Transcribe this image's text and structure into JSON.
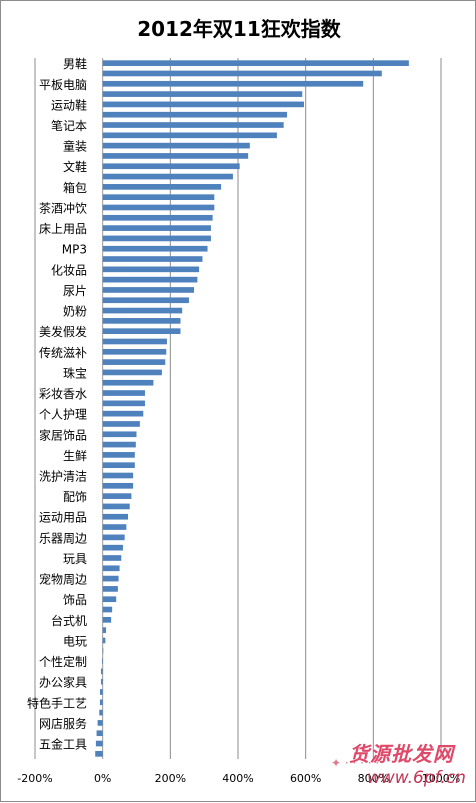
{
  "chart_data": {
    "type": "bar",
    "orientation": "horizontal",
    "title": "2012年双11狂欢指数",
    "xlabel": "",
    "ylabel": "",
    "xlim": [
      -200,
      1000
    ],
    "x_ticks": [
      "-200%",
      "0%",
      "200%",
      "400%",
      "600%",
      "800%",
      "1000%"
    ],
    "x_tick_values": [
      -200,
      0,
      200,
      400,
      600,
      800,
      1000
    ],
    "grid": "vertical",
    "bar_color": "#4f81bd",
    "categories": [
      "男鞋",
      "",
      "平板电脑",
      "",
      "运动鞋",
      "",
      "笔记本",
      "",
      "童装",
      "",
      "文鞋",
      "",
      "箱包",
      "",
      "茶酒冲饮",
      "",
      "床上用品",
      "",
      "MP3",
      "",
      "化妆品",
      "",
      "尿片",
      "",
      "奶粉",
      "",
      "美发假发",
      "",
      "传统滋补",
      "",
      "珠宝",
      "",
      "彩妆香水",
      "",
      "个人护理",
      "",
      "家居饰品",
      "",
      "生鲜",
      "",
      "洗护清洁",
      "",
      "配饰",
      "",
      "运动用品",
      "",
      "乐器周边",
      "",
      "玩具",
      "",
      "宠物周边",
      "",
      "饰品",
      "",
      "台式机",
      "",
      "电玩",
      "",
      "个性定制",
      "",
      "办公家具",
      "",
      "特色手工艺",
      "",
      "网店服务",
      "",
      "五金工具",
      ""
    ],
    "values": [
      905,
      825,
      770,
      590,
      595,
      545,
      535,
      515,
      435,
      430,
      405,
      385,
      350,
      330,
      330,
      325,
      320,
      320,
      310,
      295,
      285,
      280,
      270,
      255,
      235,
      230,
      230,
      190,
      188,
      185,
      175,
      150,
      125,
      125,
      120,
      110,
      100,
      98,
      95,
      95,
      90,
      90,
      85,
      80,
      75,
      70,
      65,
      60,
      55,
      50,
      47,
      45,
      40,
      28,
      25,
      10,
      8,
      0,
      -2,
      -5,
      -5,
      -8,
      -8,
      -10,
      -15,
      -18,
      -20,
      -22
    ]
  },
  "watermark": {
    "text_cn": "货源批发网",
    "text_url": "www.6pf.cn"
  }
}
